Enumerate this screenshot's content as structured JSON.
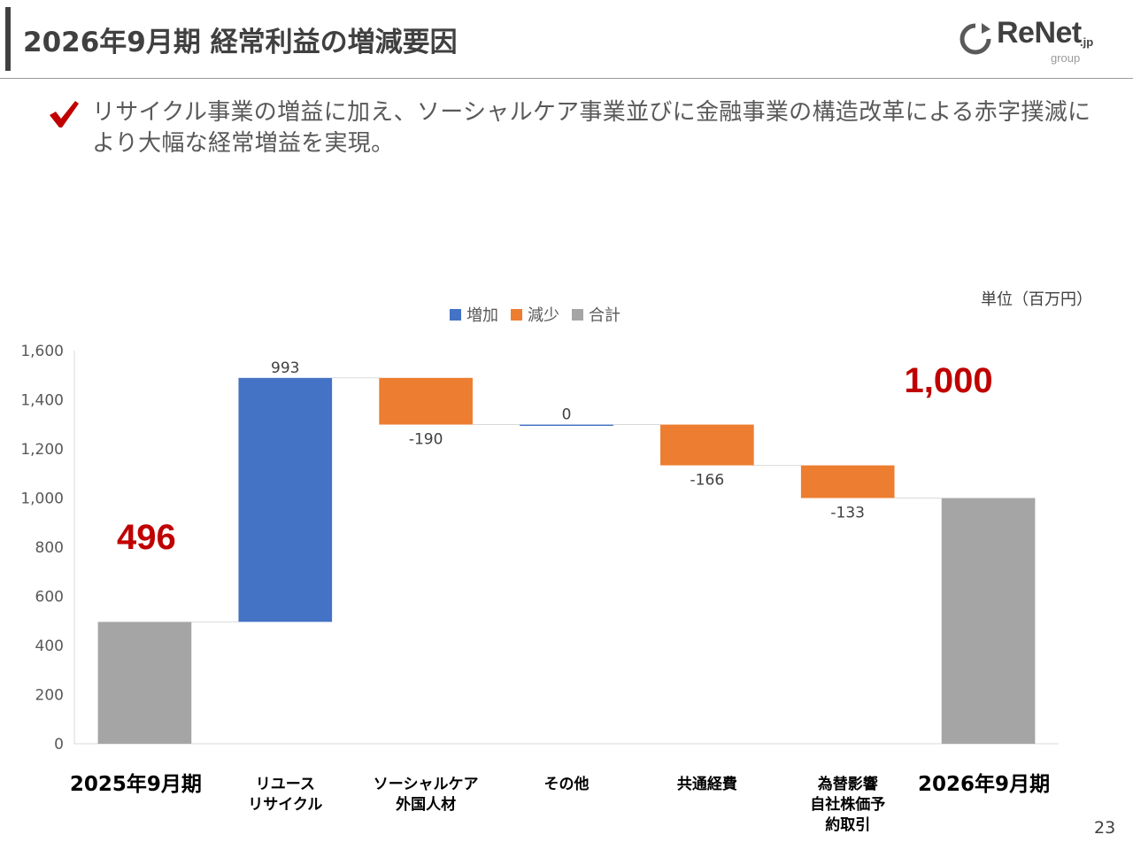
{
  "header": {
    "title": "2026年9月期 経常利益の増減要因",
    "logo": {
      "word": "ReNet",
      "suffix": ".jp",
      "sub": "group"
    }
  },
  "bullet": {
    "icon": "check-icon",
    "text": "リサイクル事業の増益に加え、ソーシャルケア事業並びに金融事業の構造改革による赤字撲滅により大幅な経常増益を実現。"
  },
  "unit_label": "単位（百万円）",
  "legend": [
    {
      "label": "増加",
      "color": "#4472c4"
    },
    {
      "label": "減少",
      "color": "#ed7d31"
    },
    {
      "label": "合計",
      "color": "#a5a5a5"
    }
  ],
  "chart_data": {
    "type": "waterfall",
    "categories": [
      "2025年9月期",
      "リユース\nリサイクル",
      "ソーシャルケア\n外国人材",
      "その他",
      "共通経費",
      "為替影響\n自社株価予\n約取引",
      "2026年9月期"
    ],
    "values": [
      496,
      993,
      -190,
      0,
      -166,
      -133,
      1000
    ],
    "kinds": [
      "total",
      "increase",
      "decrease",
      "increase",
      "decrease",
      "decrease",
      "total"
    ],
    "data_labels": [
      "",
      "993",
      "-190",
      "0",
      "-166",
      "-133",
      ""
    ],
    "total_labels": [
      "496",
      "",
      "",
      "",
      "",
      "",
      "1,000"
    ],
    "ylim": [
      0,
      1600
    ],
    "yticks": [
      0,
      200,
      400,
      600,
      800,
      1000,
      1200,
      1400,
      1600
    ],
    "ytick_labels": [
      "0",
      "200",
      "400",
      "600",
      "800",
      "1,000",
      "1,200",
      "1,400",
      "1,600"
    ],
    "colors": {
      "increase": "#4472c4",
      "decrease": "#ed7d31",
      "total": "#a5a5a5",
      "highlight": "#c00000"
    }
  },
  "page_number": "23"
}
